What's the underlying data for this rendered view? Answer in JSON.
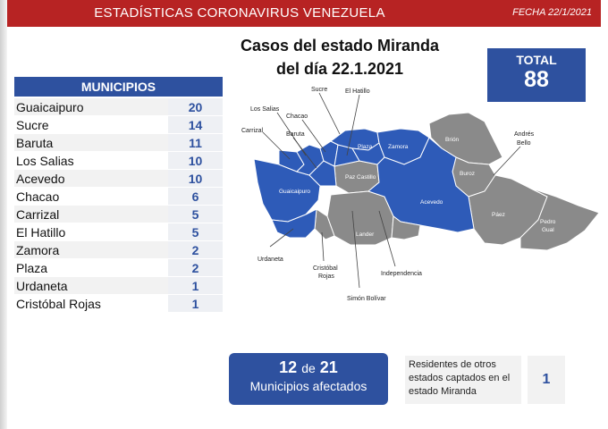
{
  "header": {
    "title": "ESTADÍSTICAS CORONAVIRUS VENEZUELA",
    "date": "FECHA 22/1/2021"
  },
  "title": {
    "line1": "Casos del estado Miranda",
    "line2": "del día 22.1.2021"
  },
  "total": {
    "label": "TOTAL",
    "value": "88"
  },
  "municipios": {
    "header": "MUNICIPIOS",
    "rows": [
      {
        "name": "Guaicaipuro",
        "count": "20"
      },
      {
        "name": "Sucre",
        "count": "14"
      },
      {
        "name": "Baruta",
        "count": "11"
      },
      {
        "name": "Los Salias",
        "count": "10"
      },
      {
        "name": "Acevedo",
        "count": "10"
      },
      {
        "name": "Chacao",
        "count": "6"
      },
      {
        "name": "Carrizal",
        "count": "5"
      },
      {
        "name": "El Hatillo",
        "count": "5"
      },
      {
        "name": "Zamora",
        "count": "2"
      },
      {
        "name": "Plaza",
        "count": "2"
      },
      {
        "name": "Urdaneta",
        "count": "1"
      },
      {
        "name": "Cristóbal Rojas",
        "count": "1"
      }
    ]
  },
  "map": {
    "colors": {
      "affected": "#2e5bb8",
      "unaffected": "#8a8a8a",
      "border": "#ffffff"
    },
    "labels": {
      "sucre": "Sucre",
      "el_hatillo": "El Hatillo",
      "los_salias": "Los Salias",
      "chacao": "Chacao",
      "baruta": "Baruta",
      "carrizal": "Carrizal",
      "plaza": "Plaza",
      "zamora": "Zamora",
      "brion": "Brión",
      "andres_bello_1": "Andrés",
      "andres_bello_2": "Bello",
      "buroz": "Buroz",
      "paz_castillo": "Paz Castillo",
      "guaicaipuro": "Guaicaipuro",
      "acevedo": "Acevedo",
      "paez": "Páez",
      "pedro_gual_1": "Pedro",
      "pedro_gual_2": "Gual",
      "lander": "Lander",
      "urdaneta": "Urdaneta",
      "cristobal_rojas_1": "Cristóbal",
      "cristobal_rojas_2": "Rojas",
      "independencia": "Independencia",
      "simon_bolivar": "Simón Bolívar"
    }
  },
  "affected": {
    "count": "12",
    "connector": "de",
    "total": "21",
    "label": "Municipios afectados"
  },
  "residents": {
    "text": "Residentes de otros estados captados en el estado Miranda",
    "count": "1"
  }
}
